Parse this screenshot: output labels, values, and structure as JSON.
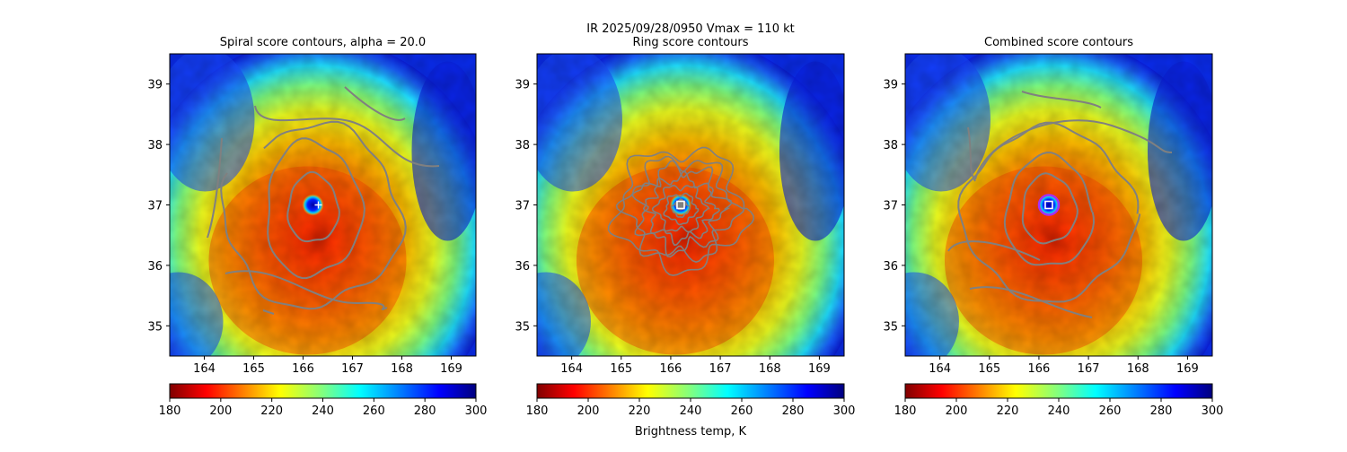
{
  "suptitle_line1": "IR  2025/09/28/0950    Vmax = 110 kt",
  "colorbar_label": "Brightness temp, K",
  "colorbar_ticks": [
    "180",
    "200",
    "220",
    "240",
    "260",
    "280",
    "300"
  ],
  "colors": {
    "contour": "#808080",
    "marker": "#ffffff",
    "eye_ring": "#a030ff"
  },
  "chart_data": [
    {
      "type": "heatmap",
      "title": "Spiral score contours, alpha = 20.0",
      "x_ticks": [
        "164",
        "165",
        "166",
        "167",
        "168",
        "169"
      ],
      "y_ticks": [
        "35",
        "36",
        "37",
        "38",
        "39"
      ],
      "xlim": [
        163.3,
        169.5
      ],
      "ylim": [
        34.5,
        39.5
      ],
      "center": [
        166.2,
        37.0
      ],
      "colorbar": {
        "range": [
          180,
          300
        ],
        "colormap": "jet_r"
      }
    },
    {
      "type": "heatmap",
      "title": "Ring score contours",
      "x_ticks": [
        "164",
        "165",
        "166",
        "167",
        "168",
        "169"
      ],
      "y_ticks": [
        "35",
        "36",
        "37",
        "38",
        "39"
      ],
      "xlim": [
        163.3,
        169.5
      ],
      "ylim": [
        34.5,
        39.5
      ],
      "center": [
        166.2,
        37.0
      ],
      "colorbar": {
        "range": [
          180,
          300
        ],
        "colormap": "jet_r"
      }
    },
    {
      "type": "heatmap",
      "title": "Combined score contours",
      "x_ticks": [
        "164",
        "165",
        "166",
        "167",
        "168",
        "169"
      ],
      "y_ticks": [
        "35",
        "36",
        "37",
        "38",
        "39"
      ],
      "xlim": [
        163.3,
        169.5
      ],
      "ylim": [
        34.5,
        39.5
      ],
      "center": [
        166.2,
        37.0
      ],
      "colorbar": {
        "range": [
          180,
          300
        ],
        "colormap": "jet_r"
      }
    }
  ]
}
